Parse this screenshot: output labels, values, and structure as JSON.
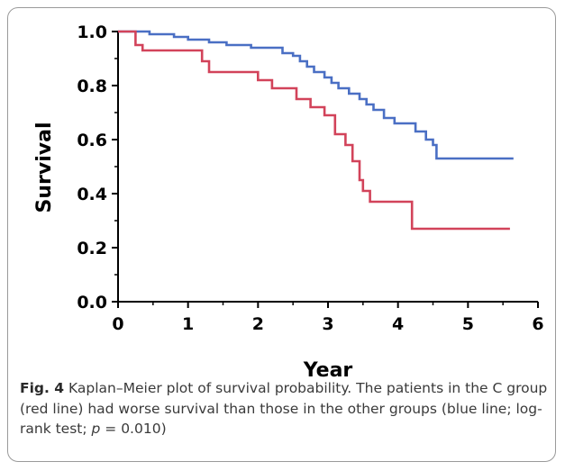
{
  "chart_data": {
    "type": "line",
    "title": "",
    "xlabel": "Year",
    "ylabel": "Survival",
    "xlim": [
      0,
      6
    ],
    "ylim": [
      0.0,
      1.0
    ],
    "x_ticks": [
      "0",
      "1",
      "2",
      "3",
      "4",
      "5",
      "6"
    ],
    "y_ticks": [
      "0.0",
      "0.2",
      "0.4",
      "0.6",
      "0.8",
      "1.0"
    ],
    "grid": false,
    "legend": "none",
    "series": [
      {
        "color": "#4a6fc4",
        "steps": [
          [
            0.0,
            1.0
          ],
          [
            0.45,
            0.99
          ],
          [
            0.8,
            0.98
          ],
          [
            1.0,
            0.97
          ],
          [
            1.3,
            0.96
          ],
          [
            1.55,
            0.95
          ],
          [
            1.9,
            0.94
          ],
          [
            2.35,
            0.92
          ],
          [
            2.5,
            0.91
          ],
          [
            2.6,
            0.89
          ],
          [
            2.7,
            0.87
          ],
          [
            2.8,
            0.85
          ],
          [
            2.95,
            0.83
          ],
          [
            3.05,
            0.81
          ],
          [
            3.15,
            0.79
          ],
          [
            3.3,
            0.77
          ],
          [
            3.45,
            0.75
          ],
          [
            3.55,
            0.73
          ],
          [
            3.65,
            0.71
          ],
          [
            3.8,
            0.68
          ],
          [
            3.95,
            0.66
          ],
          [
            4.25,
            0.63
          ],
          [
            4.4,
            0.6
          ],
          [
            4.5,
            0.58
          ],
          [
            4.55,
            0.53
          ],
          [
            5.65,
            0.53
          ]
        ]
      },
      {
        "color": "#d2435a",
        "steps": [
          [
            0.0,
            1.0
          ],
          [
            0.25,
            0.95
          ],
          [
            0.35,
            0.93
          ],
          [
            1.2,
            0.89
          ],
          [
            1.3,
            0.85
          ],
          [
            2.0,
            0.82
          ],
          [
            2.2,
            0.79
          ],
          [
            2.55,
            0.75
          ],
          [
            2.75,
            0.72
          ],
          [
            2.95,
            0.69
          ],
          [
            3.1,
            0.62
          ],
          [
            3.25,
            0.58
          ],
          [
            3.35,
            0.52
          ],
          [
            3.45,
            0.45
          ],
          [
            3.5,
            0.41
          ],
          [
            3.6,
            0.37
          ],
          [
            4.2,
            0.27
          ],
          [
            5.6,
            0.27
          ]
        ]
      }
    ]
  },
  "caption": {
    "label": "Fig. 4",
    "text_main": " Kaplan–Meier plot of survival probability. The patients in the C group (red line) had worse survival than those in the other groups (blue line; log-rank test; ",
    "p_symbol": "p",
    "text_tail": " = 0.010)"
  }
}
